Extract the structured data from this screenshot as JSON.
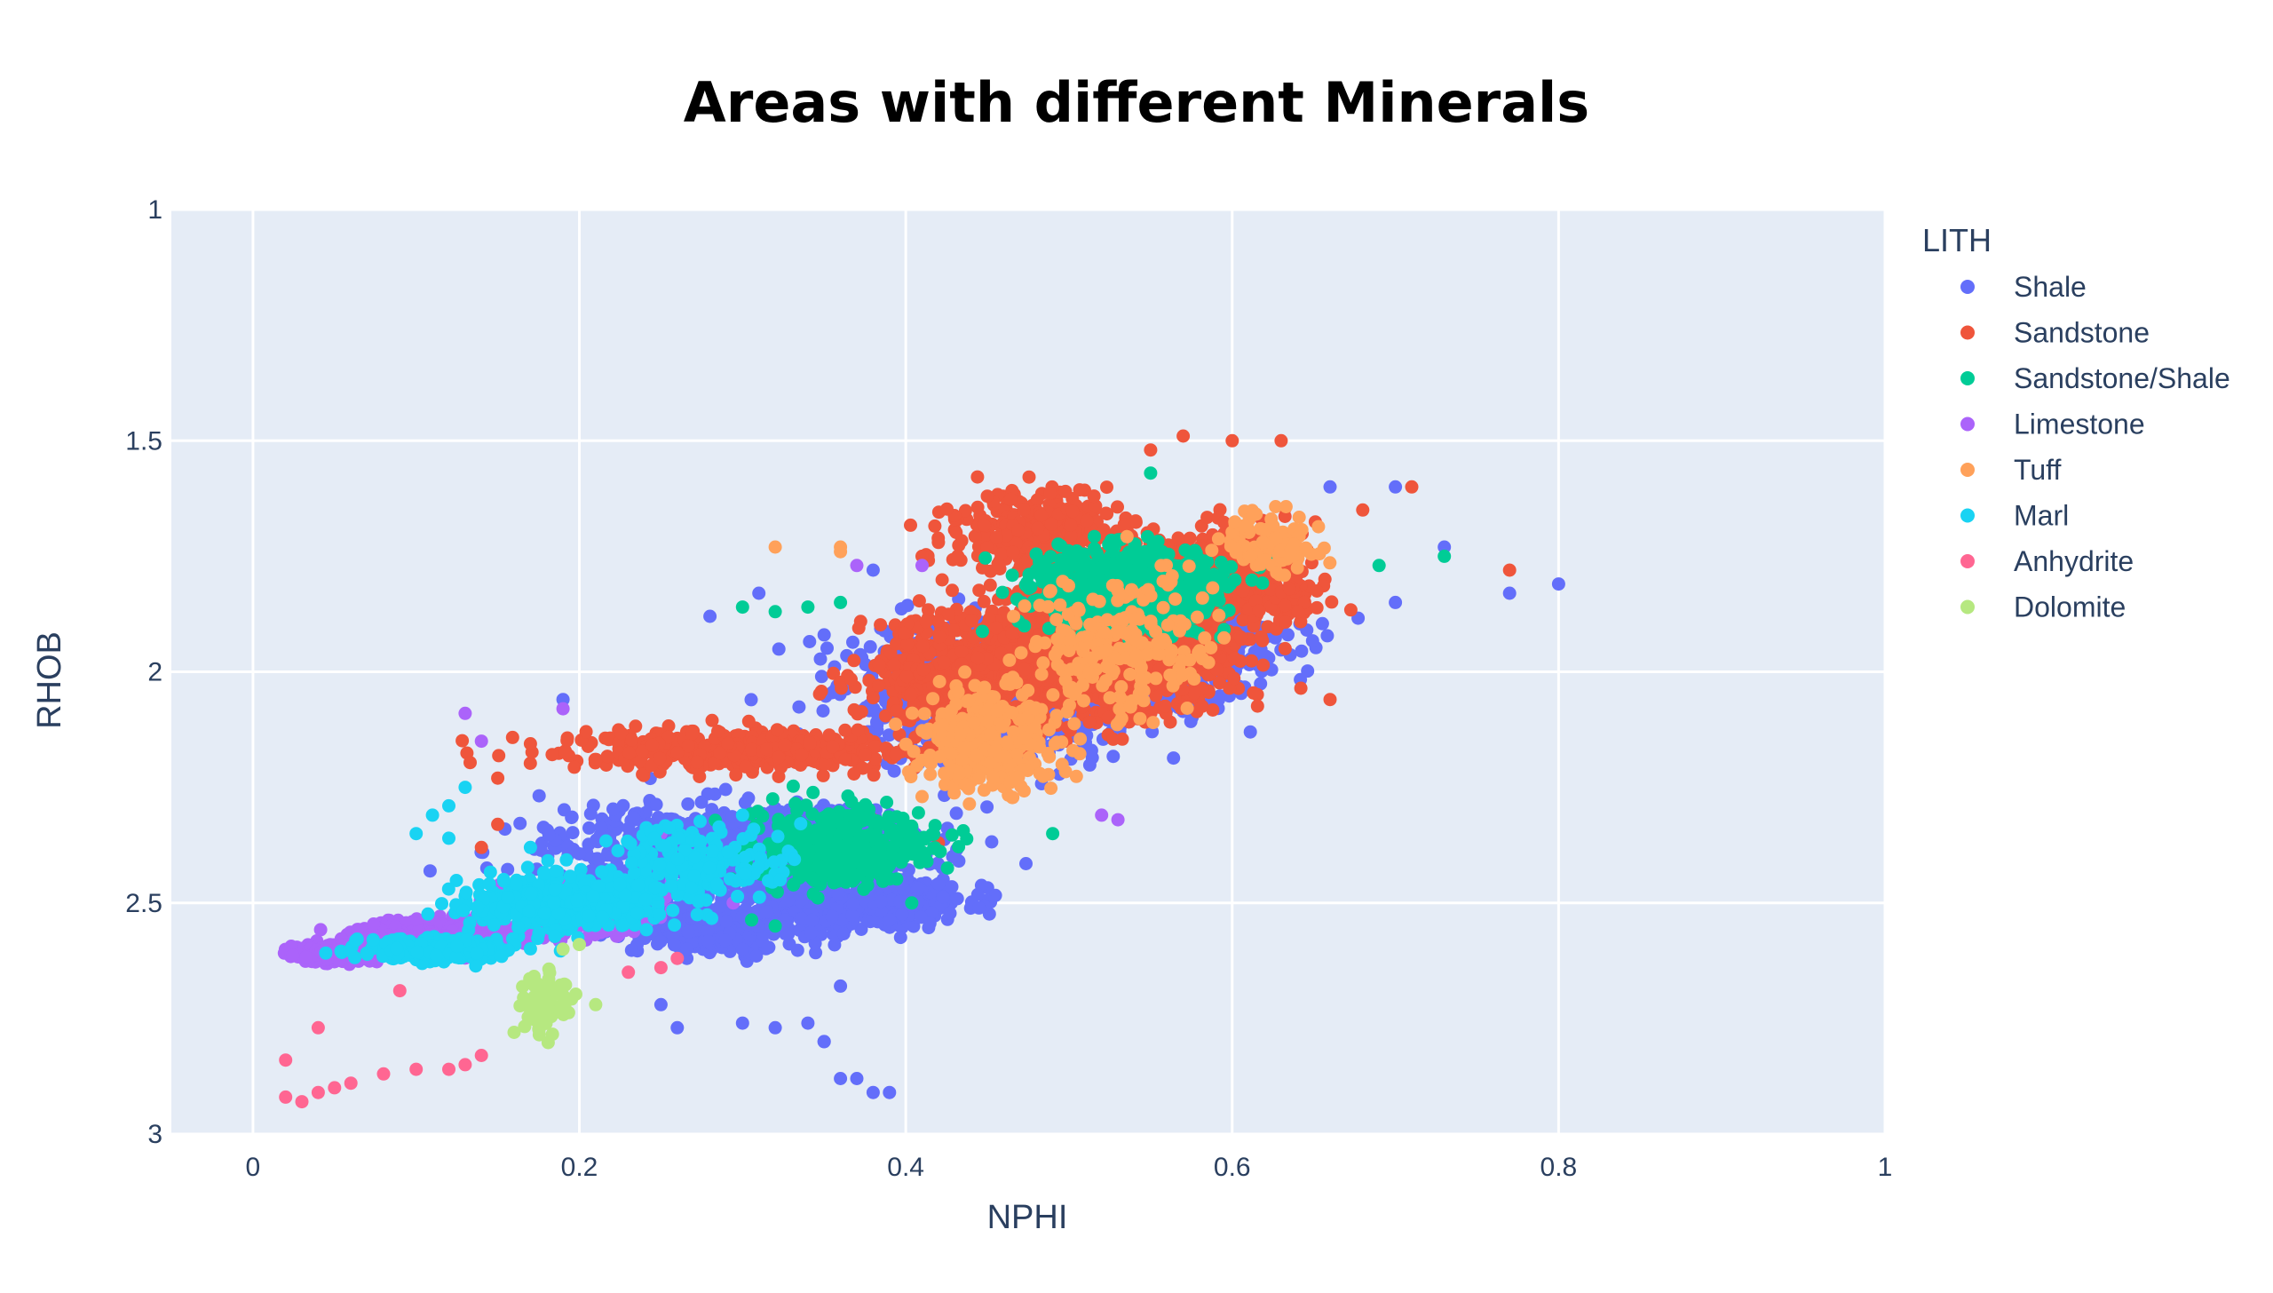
{
  "chart_data": {
    "type": "scatter",
    "title": "Areas with different Minerals",
    "xlabel": "NPHI",
    "ylabel": "RHOB",
    "xlim": [
      -0.05,
      1
    ],
    "ylim": [
      1,
      3
    ],
    "y_reversed": true,
    "x_ticks": [
      "0",
      "0.2",
      "0.4",
      "0.6",
      "0.8",
      "1"
    ],
    "x_tick_values": [
      0,
      0.2,
      0.4,
      0.6,
      0.8,
      1
    ],
    "y_ticks": [
      "1",
      "1.5",
      "2",
      "2.5",
      "3"
    ],
    "y_tick_values": [
      1,
      1.5,
      2,
      2.5,
      3
    ],
    "grid": true,
    "legend_title": "LITH",
    "legend_position": "right",
    "series": [
      {
        "name": "Shale",
        "color": "#636efa",
        "clusters": [
          [
            0.3,
            2.38,
            0.1,
            0.08,
            900
          ],
          [
            0.45,
            2.05,
            0.07,
            0.12,
            900
          ],
          [
            0.55,
            1.95,
            0.07,
            0.12,
            700
          ],
          [
            0.37,
            2.5,
            0.06,
            0.05,
            500
          ],
          [
            0.28,
            2.55,
            0.05,
            0.05,
            300
          ]
        ],
        "points": [
          [
            0.8,
            1.81
          ],
          [
            0.77,
            1.83
          ],
          [
            0.73,
            1.73
          ],
          [
            0.7,
            1.6
          ],
          [
            0.7,
            1.85
          ],
          [
            0.66,
            1.6
          ],
          [
            0.25,
            2.72
          ],
          [
            0.26,
            2.77
          ],
          [
            0.3,
            2.76
          ],
          [
            0.32,
            2.77
          ],
          [
            0.34,
            2.76
          ],
          [
            0.35,
            2.8
          ],
          [
            0.36,
            2.88
          ],
          [
            0.37,
            2.88
          ],
          [
            0.38,
            2.91
          ],
          [
            0.39,
            2.91
          ],
          [
            0.36,
            2.68
          ],
          [
            0.18,
            2.46
          ],
          [
            0.19,
            2.06
          ],
          [
            0.35,
            1.92
          ],
          [
            0.28,
            1.88
          ],
          [
            0.31,
            1.83
          ],
          [
            0.38,
            1.78
          ],
          [
            0.35,
            2.8
          ]
        ]
      },
      {
        "name": "Sandstone",
        "color": "#ef553b",
        "clusters": [
          [
            0.52,
            1.95,
            0.07,
            0.13,
            1200
          ],
          [
            0.43,
            2.0,
            0.05,
            0.1,
            500
          ],
          [
            0.3,
            2.17,
            0.1,
            0.04,
            450
          ],
          [
            0.6,
            1.8,
            0.04,
            0.1,
            500
          ],
          [
            0.48,
            1.7,
            0.05,
            0.08,
            300
          ]
        ],
        "points": [
          [
            0.77,
            1.78
          ],
          [
            0.71,
            1.6
          ],
          [
            0.68,
            1.65
          ],
          [
            0.66,
            2.06
          ],
          [
            0.57,
            1.49
          ],
          [
            0.6,
            1.5
          ],
          [
            0.63,
            1.5
          ],
          [
            0.55,
            1.52
          ],
          [
            0.45,
            1.62
          ],
          [
            0.42,
            1.72
          ],
          [
            0.41,
            1.75
          ],
          [
            0.38,
            2.32
          ],
          [
            0.15,
            2.33
          ],
          [
            0.14,
            2.38
          ],
          [
            0.15,
            2.23
          ],
          [
            0.42,
            2.37
          ],
          [
            0.25,
            2.49
          ],
          [
            0.13,
            2.55
          ]
        ]
      },
      {
        "name": "Sandstone/Shale",
        "color": "#00cc96",
        "clusters": [
          [
            0.54,
            1.82,
            0.05,
            0.08,
            800
          ],
          [
            0.36,
            2.38,
            0.05,
            0.08,
            350
          ]
        ],
        "points": [
          [
            0.69,
            1.77
          ],
          [
            0.73,
            1.75
          ],
          [
            0.55,
            1.57
          ],
          [
            0.3,
            1.86
          ],
          [
            0.32,
            1.87
          ],
          [
            0.34,
            1.86
          ],
          [
            0.36,
            1.85
          ],
          [
            0.49,
            2.35
          ],
          [
            0.32,
            2.55
          ]
        ]
      },
      {
        "name": "Limestone",
        "color": "#ab63fa",
        "clusters": [
          [
            0.12,
            2.57,
            0.05,
            0.025,
            700
          ],
          [
            0.05,
            2.61,
            0.02,
            0.015,
            350
          ],
          [
            0.2,
            2.52,
            0.04,
            0.04,
            300
          ]
        ],
        "points": [
          [
            0.13,
            2.09
          ],
          [
            0.14,
            2.15
          ],
          [
            0.19,
            2.08
          ],
          [
            0.37,
            1.77
          ],
          [
            0.41,
            1.77
          ],
          [
            0.52,
            2.31
          ],
          [
            0.53,
            2.32
          ],
          [
            0.25,
            2.35
          ]
        ]
      },
      {
        "name": "Tuff",
        "color": "#ffa15a",
        "clusters": [
          [
            0.45,
            2.15,
            0.04,
            0.1,
            280
          ],
          [
            0.53,
            1.95,
            0.05,
            0.15,
            220
          ],
          [
            0.62,
            1.72,
            0.03,
            0.06,
            100
          ]
        ],
        "points": [
          [
            0.32,
            1.73
          ],
          [
            0.36,
            1.73
          ],
          [
            0.36,
            1.74
          ],
          [
            0.41,
            2.27
          ]
        ]
      },
      {
        "name": "Marl",
        "color": "#19d3f3",
        "clusters": [
          [
            0.19,
            2.5,
            0.05,
            0.05,
            500
          ],
          [
            0.11,
            2.6,
            0.04,
            0.02,
            300
          ],
          [
            0.27,
            2.42,
            0.05,
            0.08,
            180
          ]
        ],
        "points": [
          [
            0.12,
            2.29
          ],
          [
            0.13,
            2.25
          ],
          [
            0.12,
            2.36
          ],
          [
            0.1,
            2.35
          ],
          [
            0.11,
            2.31
          ],
          [
            0.17,
            2.38
          ],
          [
            0.3,
            2.31
          ]
        ]
      },
      {
        "name": "Anhydrite",
        "color": "#ff6692",
        "clusters": [],
        "points": [
          [
            0.02,
            2.92
          ],
          [
            0.03,
            2.93
          ],
          [
            0.04,
            2.91
          ],
          [
            0.05,
            2.9
          ],
          [
            0.06,
            2.89
          ],
          [
            0.08,
            2.87
          ],
          [
            0.1,
            2.86
          ],
          [
            0.12,
            2.86
          ],
          [
            0.13,
            2.85
          ],
          [
            0.14,
            2.83
          ],
          [
            0.02,
            2.84
          ],
          [
            0.04,
            2.77
          ],
          [
            0.09,
            2.69
          ],
          [
            0.23,
            2.65
          ],
          [
            0.25,
            2.64
          ],
          [
            0.26,
            2.62
          ]
        ]
      },
      {
        "name": "Dolomite",
        "color": "#b6e880",
        "clusters": [
          [
            0.18,
            2.72,
            0.015,
            0.07,
            60
          ]
        ],
        "points": [
          [
            0.16,
            2.78
          ],
          [
            0.21,
            2.72
          ],
          [
            0.2,
            2.59
          ],
          [
            0.19,
            2.6
          ]
        ]
      }
    ]
  }
}
